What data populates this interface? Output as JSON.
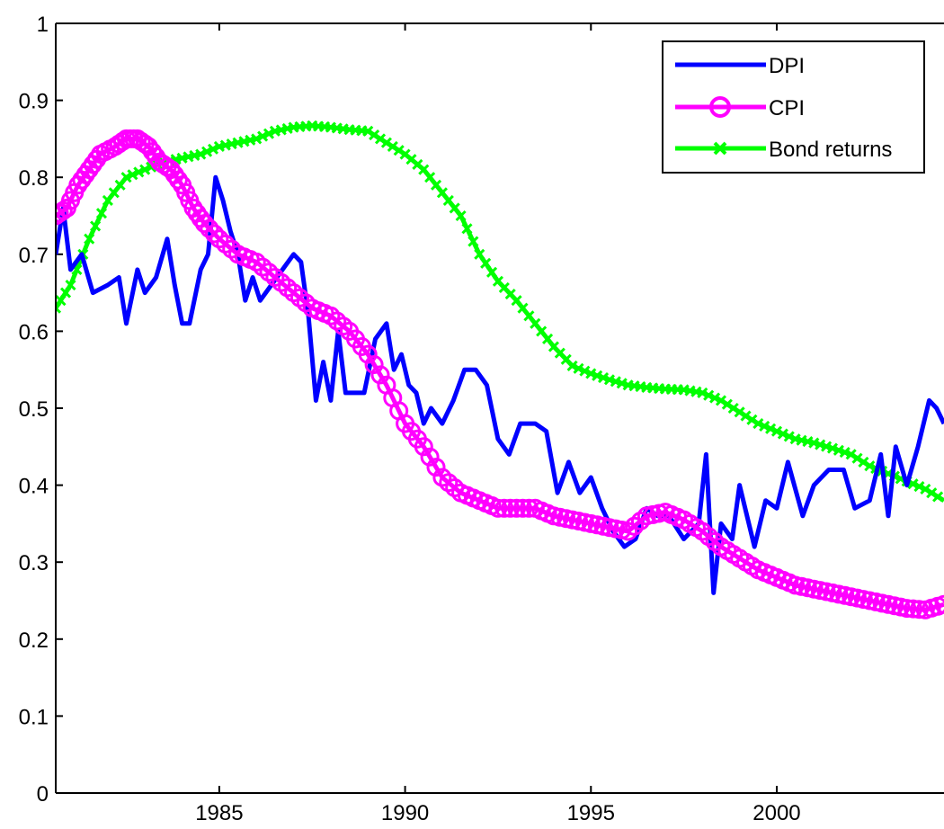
{
  "chart_data": {
    "type": "line",
    "title": "",
    "xlabel": "",
    "ylabel": "",
    "xlim": [
      1980.6,
      2004.5
    ],
    "ylim": [
      0,
      1
    ],
    "x_ticks": [
      1985,
      1990,
      1995,
      2000
    ],
    "y_ticks": [
      0,
      0.1,
      0.2,
      0.3,
      0.4,
      0.5,
      0.6,
      0.7,
      0.8,
      0.9,
      1
    ],
    "y_tick_labels": [
      "0",
      "0.1",
      "0.2",
      "0.3",
      "0.4",
      "0.5",
      "0.6",
      "0.7",
      "0.8",
      "0.9",
      "1"
    ],
    "grid": false,
    "legend_position": "top-right",
    "series": [
      {
        "name": "DPI",
        "color": "#0000ff",
        "marker": "none",
        "points": [
          [
            1980.6,
            0.7
          ],
          [
            1980.8,
            0.76
          ],
          [
            1981.0,
            0.68
          ],
          [
            1981.3,
            0.7
          ],
          [
            1981.6,
            0.65
          ],
          [
            1982.0,
            0.66
          ],
          [
            1982.3,
            0.67
          ],
          [
            1982.5,
            0.61
          ],
          [
            1982.8,
            0.68
          ],
          [
            1983.0,
            0.65
          ],
          [
            1983.3,
            0.67
          ],
          [
            1983.6,
            0.72
          ],
          [
            1983.8,
            0.66
          ],
          [
            1984.0,
            0.61
          ],
          [
            1984.2,
            0.61
          ],
          [
            1984.5,
            0.68
          ],
          [
            1984.7,
            0.7
          ],
          [
            1984.9,
            0.8
          ],
          [
            1985.1,
            0.77
          ],
          [
            1985.3,
            0.73
          ],
          [
            1985.5,
            0.7
          ],
          [
            1985.7,
            0.64
          ],
          [
            1985.9,
            0.67
          ],
          [
            1986.1,
            0.64
          ],
          [
            1986.4,
            0.66
          ],
          [
            1986.7,
            0.68
          ],
          [
            1987.0,
            0.7
          ],
          [
            1987.2,
            0.69
          ],
          [
            1987.4,
            0.62
          ],
          [
            1987.6,
            0.51
          ],
          [
            1987.8,
            0.56
          ],
          [
            1988.0,
            0.51
          ],
          [
            1988.2,
            0.6
          ],
          [
            1988.4,
            0.52
          ],
          [
            1988.6,
            0.52
          ],
          [
            1988.9,
            0.52
          ],
          [
            1989.2,
            0.59
          ],
          [
            1989.5,
            0.61
          ],
          [
            1989.7,
            0.55
          ],
          [
            1989.9,
            0.57
          ],
          [
            1990.1,
            0.53
          ],
          [
            1990.3,
            0.52
          ],
          [
            1990.5,
            0.48
          ],
          [
            1990.7,
            0.5
          ],
          [
            1991.0,
            0.48
          ],
          [
            1991.3,
            0.51
          ],
          [
            1991.6,
            0.55
          ],
          [
            1991.9,
            0.55
          ],
          [
            1992.2,
            0.53
          ],
          [
            1992.5,
            0.46
          ],
          [
            1992.8,
            0.44
          ],
          [
            1993.1,
            0.48
          ],
          [
            1993.5,
            0.48
          ],
          [
            1993.8,
            0.47
          ],
          [
            1994.1,
            0.39
          ],
          [
            1994.4,
            0.43
          ],
          [
            1994.7,
            0.39
          ],
          [
            1995.0,
            0.41
          ],
          [
            1995.3,
            0.37
          ],
          [
            1995.6,
            0.34
          ],
          [
            1995.9,
            0.32
          ],
          [
            1996.2,
            0.33
          ],
          [
            1996.5,
            0.37
          ],
          [
            1996.8,
            0.36
          ],
          [
            1997.1,
            0.36
          ],
          [
            1997.5,
            0.33
          ],
          [
            1997.9,
            0.35
          ],
          [
            1998.1,
            0.44
          ],
          [
            1998.3,
            0.26
          ],
          [
            1998.5,
            0.35
          ],
          [
            1998.8,
            0.33
          ],
          [
            1999.0,
            0.4
          ],
          [
            1999.4,
            0.32
          ],
          [
            1999.7,
            0.38
          ],
          [
            2000.0,
            0.37
          ],
          [
            2000.3,
            0.43
          ],
          [
            2000.7,
            0.36
          ],
          [
            2001.0,
            0.4
          ],
          [
            2001.4,
            0.42
          ],
          [
            2001.8,
            0.42
          ],
          [
            2002.1,
            0.37
          ],
          [
            2002.5,
            0.38
          ],
          [
            2002.8,
            0.44
          ],
          [
            2003.0,
            0.36
          ],
          [
            2003.2,
            0.45
          ],
          [
            2003.5,
            0.4
          ],
          [
            2003.8,
            0.45
          ],
          [
            2004.1,
            0.51
          ],
          [
            2004.3,
            0.5
          ],
          [
            2004.5,
            0.48
          ]
        ]
      },
      {
        "name": "CPI",
        "color": "#ff00ff",
        "marker": "circle",
        "points": [
          [
            1980.6,
            0.75
          ],
          [
            1980.9,
            0.76
          ],
          [
            1981.2,
            0.79
          ],
          [
            1981.5,
            0.81
          ],
          [
            1981.8,
            0.83
          ],
          [
            1982.2,
            0.84
          ],
          [
            1982.5,
            0.85
          ],
          [
            1982.8,
            0.85
          ],
          [
            1983.1,
            0.84
          ],
          [
            1983.4,
            0.82
          ],
          [
            1983.7,
            0.81
          ],
          [
            1984.0,
            0.79
          ],
          [
            1984.3,
            0.76
          ],
          [
            1984.6,
            0.74
          ],
          [
            1985.0,
            0.72
          ],
          [
            1985.5,
            0.7
          ],
          [
            1986.0,
            0.69
          ],
          [
            1986.5,
            0.67
          ],
          [
            1987.0,
            0.65
          ],
          [
            1987.5,
            0.63
          ],
          [
            1988.0,
            0.62
          ],
          [
            1988.5,
            0.6
          ],
          [
            1989.0,
            0.57
          ],
          [
            1989.5,
            0.53
          ],
          [
            1990.0,
            0.48
          ],
          [
            1990.5,
            0.45
          ],
          [
            1991.0,
            0.41
          ],
          [
            1991.5,
            0.39
          ],
          [
            1992.0,
            0.38
          ],
          [
            1992.5,
            0.37
          ],
          [
            1993.0,
            0.37
          ],
          [
            1993.5,
            0.37
          ],
          [
            1994.0,
            0.36
          ],
          [
            1994.5,
            0.355
          ],
          [
            1995.0,
            0.35
          ],
          [
            1995.5,
            0.345
          ],
          [
            1996.0,
            0.34
          ],
          [
            1996.5,
            0.36
          ],
          [
            1997.0,
            0.365
          ],
          [
            1997.5,
            0.355
          ],
          [
            1998.0,
            0.34
          ],
          [
            1998.5,
            0.32
          ],
          [
            1999.0,
            0.305
          ],
          [
            1999.5,
            0.29
          ],
          [
            2000.0,
            0.28
          ],
          [
            2000.5,
            0.27
          ],
          [
            2001.0,
            0.265
          ],
          [
            2001.5,
            0.26
          ],
          [
            2002.0,
            0.255
          ],
          [
            2002.5,
            0.25
          ],
          [
            2003.0,
            0.245
          ],
          [
            2003.5,
            0.24
          ],
          [
            2004.0,
            0.238
          ],
          [
            2004.5,
            0.245
          ]
        ]
      },
      {
        "name": "Bond returns",
        "color": "#00ff00",
        "marker": "cross",
        "points": [
          [
            1980.6,
            0.63
          ],
          [
            1981.0,
            0.66
          ],
          [
            1981.5,
            0.72
          ],
          [
            1982.0,
            0.77
          ],
          [
            1982.5,
            0.8
          ],
          [
            1983.0,
            0.81
          ],
          [
            1983.5,
            0.82
          ],
          [
            1984.0,
            0.825
          ],
          [
            1984.5,
            0.83
          ],
          [
            1985.0,
            0.84
          ],
          [
            1985.5,
            0.845
          ],
          [
            1986.0,
            0.85
          ],
          [
            1986.5,
            0.86
          ],
          [
            1987.0,
            0.865
          ],
          [
            1987.5,
            0.867
          ],
          [
            1988.0,
            0.865
          ],
          [
            1988.5,
            0.862
          ],
          [
            1989.0,
            0.86
          ],
          [
            1989.5,
            0.845
          ],
          [
            1990.0,
            0.83
          ],
          [
            1990.5,
            0.81
          ],
          [
            1991.0,
            0.78
          ],
          [
            1991.5,
            0.75
          ],
          [
            1992.0,
            0.7
          ],
          [
            1992.5,
            0.665
          ],
          [
            1993.0,
            0.64
          ],
          [
            1993.5,
            0.61
          ],
          [
            1994.0,
            0.58
          ],
          [
            1994.5,
            0.555
          ],
          [
            1995.0,
            0.545
          ],
          [
            1995.5,
            0.537
          ],
          [
            1996.0,
            0.53
          ],
          [
            1996.5,
            0.527
          ],
          [
            1997.0,
            0.525
          ],
          [
            1997.5,
            0.524
          ],
          [
            1998.0,
            0.52
          ],
          [
            1998.5,
            0.51
          ],
          [
            1999.0,
            0.495
          ],
          [
            1999.5,
            0.48
          ],
          [
            2000.0,
            0.47
          ],
          [
            2000.5,
            0.46
          ],
          [
            2001.0,
            0.455
          ],
          [
            2001.5,
            0.448
          ],
          [
            2002.0,
            0.44
          ],
          [
            2002.5,
            0.425
          ],
          [
            2003.0,
            0.415
          ],
          [
            2003.5,
            0.405
          ],
          [
            2004.0,
            0.395
          ],
          [
            2004.5,
            0.38
          ]
        ]
      }
    ]
  }
}
